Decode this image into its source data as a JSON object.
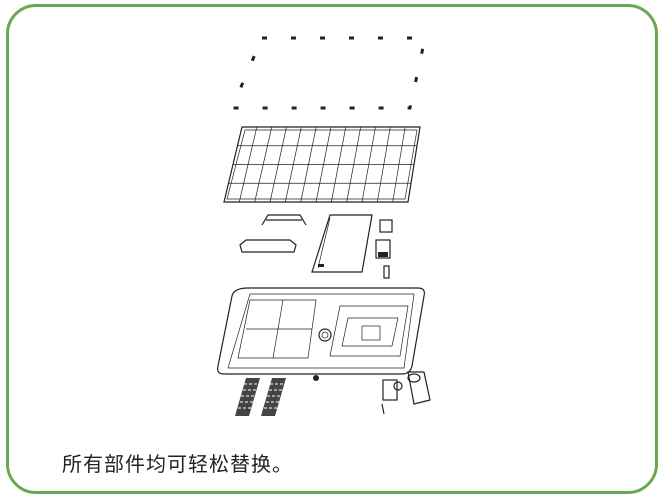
{
  "caption": "所有部件均可轻松替换。"
}
